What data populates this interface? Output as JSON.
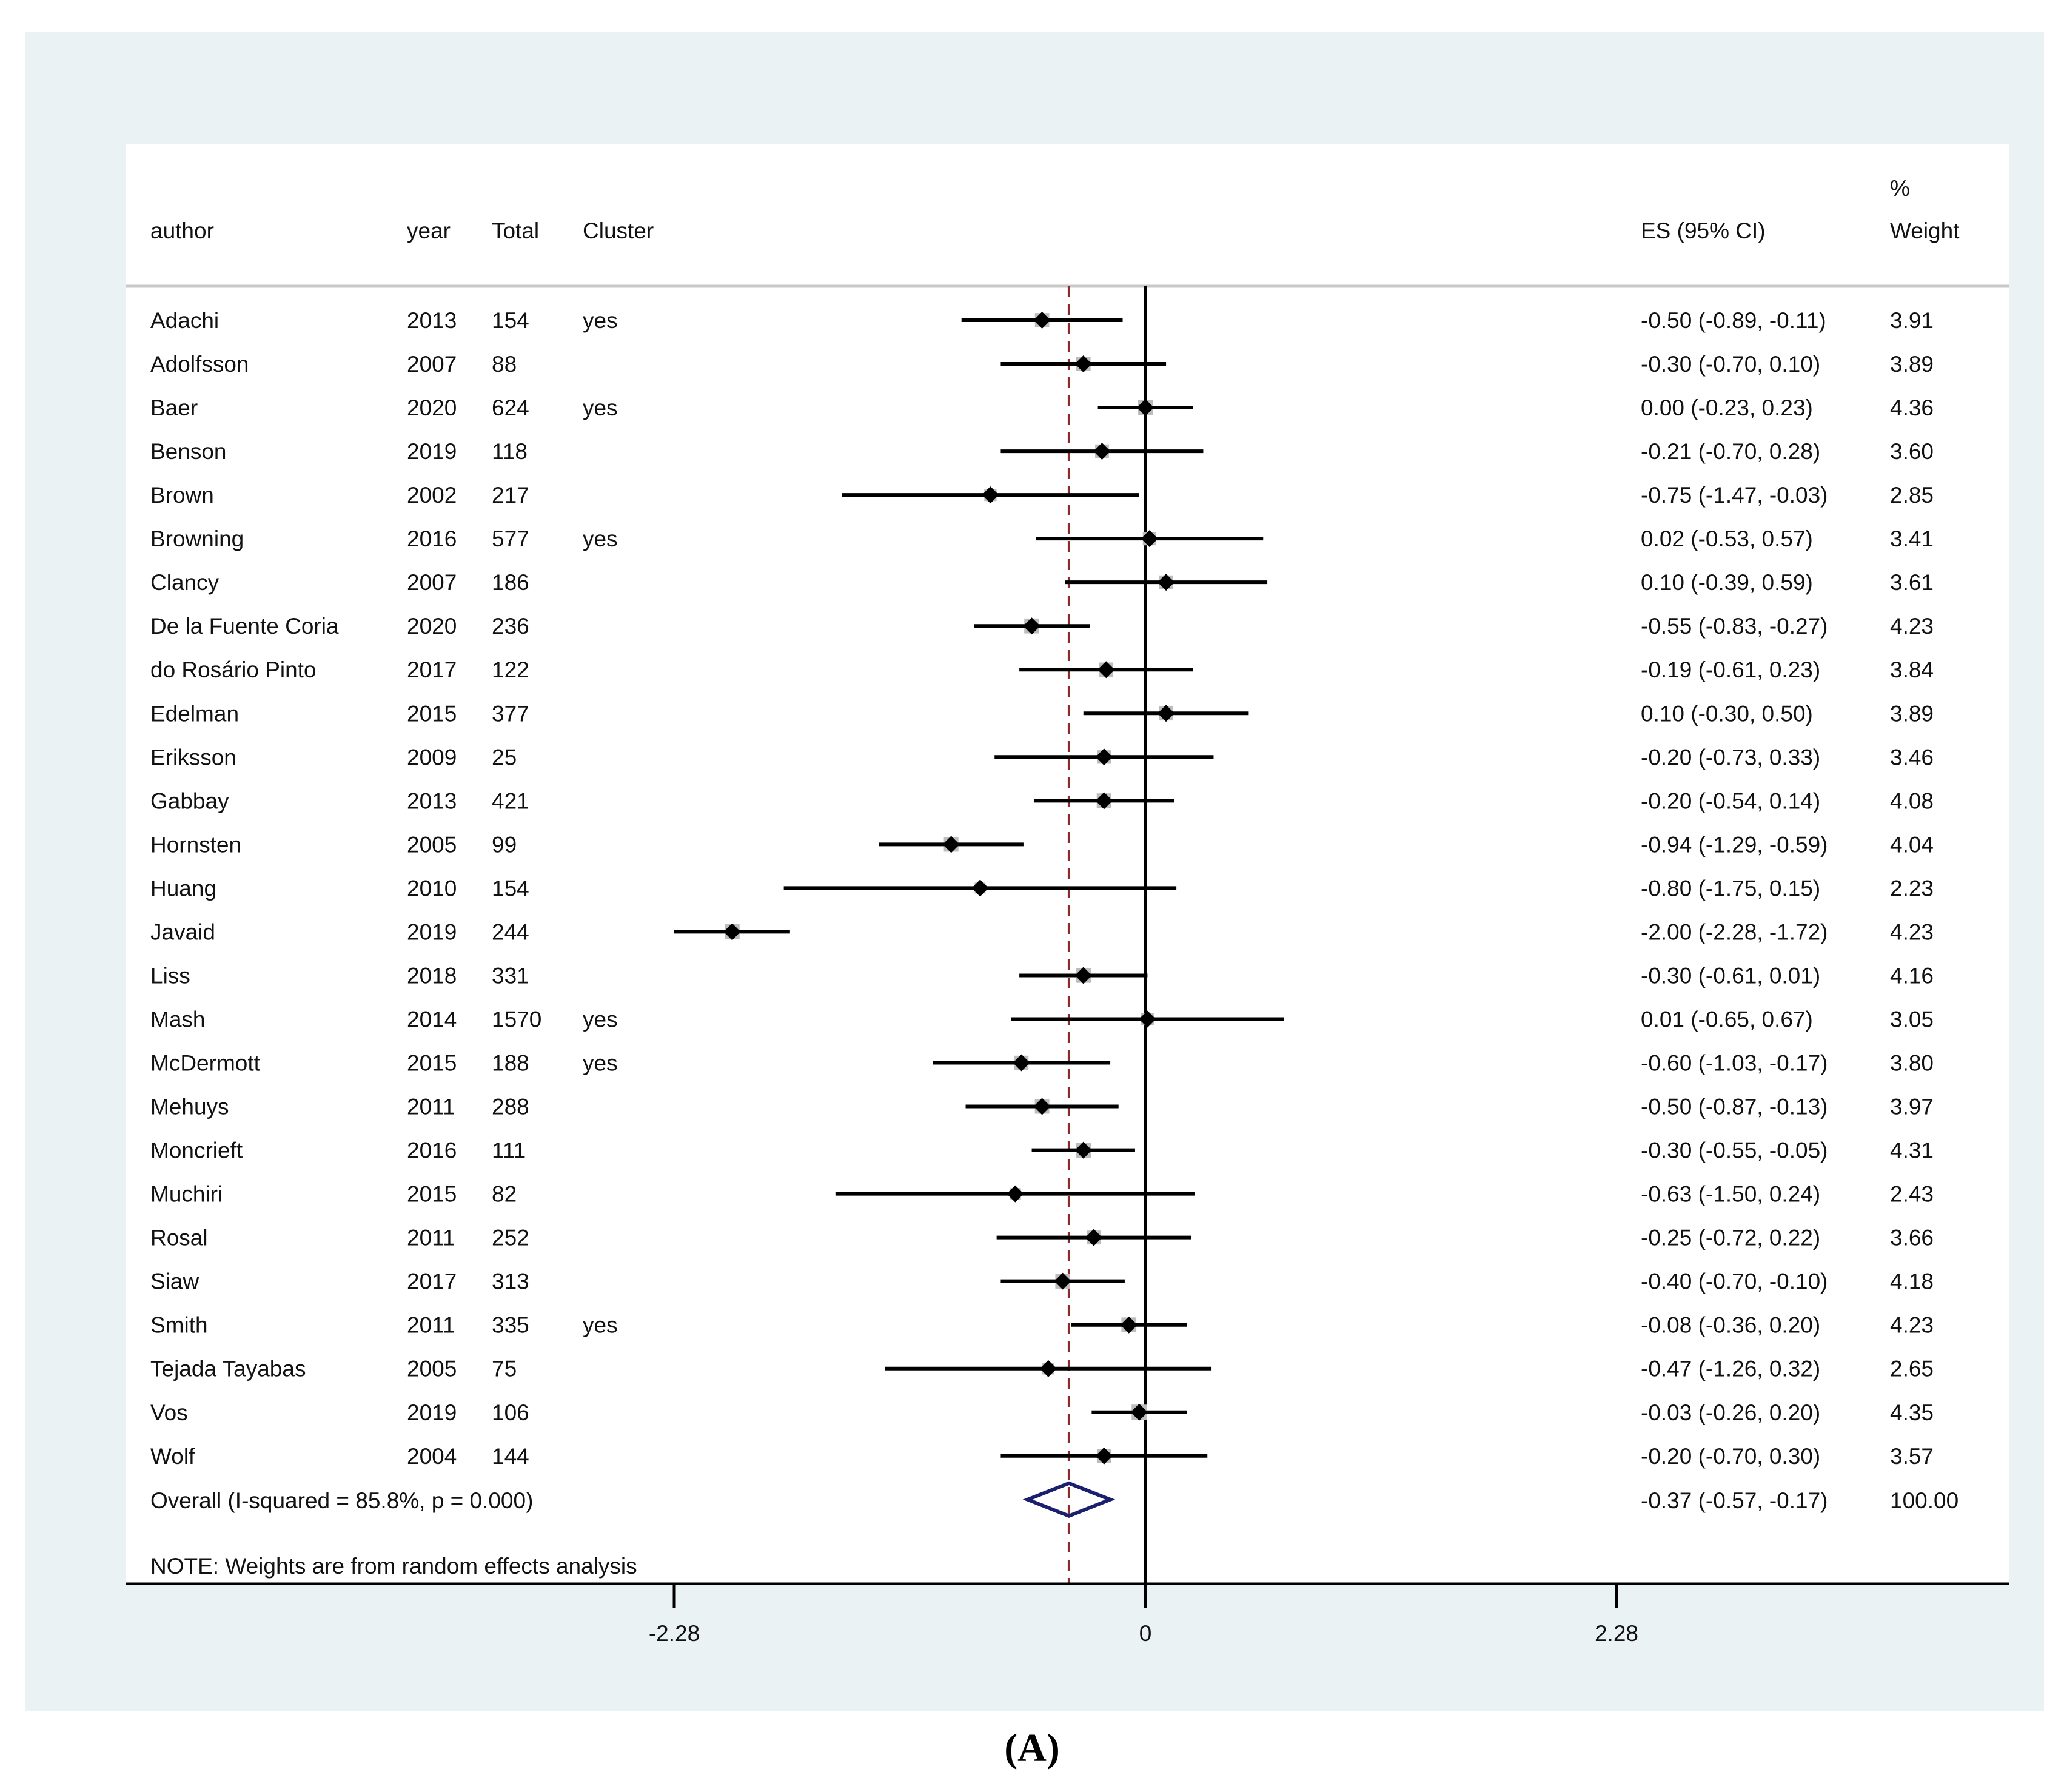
{
  "panel_label": "(A)",
  "chart_data": {
    "type": "forest",
    "headers": {
      "author": "author",
      "year": "year",
      "total": "Total",
      "cluster": "Cluster",
      "es": "ES (95% CI)",
      "weight_top": "%",
      "weight": "Weight"
    },
    "studies": [
      {
        "author": "Adachi",
        "year": "2013",
        "total": "154",
        "cluster": "yes",
        "es": -0.5,
        "lo": -0.89,
        "hi": -0.11,
        "es_text": "-0.50 (-0.89, -0.11)",
        "weight": "3.91"
      },
      {
        "author": "Adolfsson",
        "year": "2007",
        "total": "88",
        "cluster": "",
        "es": -0.3,
        "lo": -0.7,
        "hi": 0.1,
        "es_text": "-0.30 (-0.70, 0.10)",
        "weight": "3.89"
      },
      {
        "author": "Baer",
        "year": "2020",
        "total": "624",
        "cluster": "yes",
        "es": 0.0,
        "lo": -0.23,
        "hi": 0.23,
        "es_text": "0.00 (-0.23, 0.23)",
        "weight": "4.36"
      },
      {
        "author": "Benson",
        "year": "2019",
        "total": "118",
        "cluster": "",
        "es": -0.21,
        "lo": -0.7,
        "hi": 0.28,
        "es_text": "-0.21 (-0.70, 0.28)",
        "weight": "3.60"
      },
      {
        "author": "Brown",
        "year": "2002",
        "total": "217",
        "cluster": "",
        "es": -0.75,
        "lo": -1.47,
        "hi": -0.03,
        "es_text": "-0.75 (-1.47, -0.03)",
        "weight": "2.85"
      },
      {
        "author": "Browning",
        "year": "2016",
        "total": "577",
        "cluster": "yes",
        "es": 0.02,
        "lo": -0.53,
        "hi": 0.57,
        "es_text": "0.02 (-0.53, 0.57)",
        "weight": "3.41"
      },
      {
        "author": "Clancy",
        "year": "2007",
        "total": "186",
        "cluster": "",
        "es": 0.1,
        "lo": -0.39,
        "hi": 0.59,
        "es_text": "0.10 (-0.39, 0.59)",
        "weight": "3.61"
      },
      {
        "author": "De la Fuente Coria",
        "year": "2020",
        "total": "236",
        "cluster": "",
        "es": -0.55,
        "lo": -0.83,
        "hi": -0.27,
        "es_text": "-0.55 (-0.83, -0.27)",
        "weight": "4.23"
      },
      {
        "author": "do Rosário Pinto",
        "year": "2017",
        "total": "122",
        "cluster": "",
        "es": -0.19,
        "lo": -0.61,
        "hi": 0.23,
        "es_text": "-0.19 (-0.61, 0.23)",
        "weight": "3.84"
      },
      {
        "author": "Edelman",
        "year": "2015",
        "total": "377",
        "cluster": "",
        "es": 0.1,
        "lo": -0.3,
        "hi": 0.5,
        "es_text": "0.10 (-0.30, 0.50)",
        "weight": "3.89"
      },
      {
        "author": "Eriksson",
        "year": "2009",
        "total": "25",
        "cluster": "",
        "es": -0.2,
        "lo": -0.73,
        "hi": 0.33,
        "es_text": "-0.20 (-0.73, 0.33)",
        "weight": "3.46"
      },
      {
        "author": "Gabbay",
        "year": "2013",
        "total": "421",
        "cluster": "",
        "es": -0.2,
        "lo": -0.54,
        "hi": 0.14,
        "es_text": "-0.20 (-0.54, 0.14)",
        "weight": "4.08"
      },
      {
        "author": "Hornsten",
        "year": "2005",
        "total": "99",
        "cluster": "",
        "es": -0.94,
        "lo": -1.29,
        "hi": -0.59,
        "es_text": "-0.94 (-1.29, -0.59)",
        "weight": "4.04"
      },
      {
        "author": "Huang",
        "year": "2010",
        "total": "154",
        "cluster": "",
        "es": -0.8,
        "lo": -1.75,
        "hi": 0.15,
        "es_text": "-0.80 (-1.75, 0.15)",
        "weight": "2.23"
      },
      {
        "author": "Javaid",
        "year": "2019",
        "total": "244",
        "cluster": "",
        "es": -2.0,
        "lo": -2.28,
        "hi": -1.72,
        "es_text": "-2.00 (-2.28, -1.72)",
        "weight": "4.23"
      },
      {
        "author": "Liss",
        "year": "2018",
        "total": "331",
        "cluster": "",
        "es": -0.3,
        "lo": -0.61,
        "hi": 0.01,
        "es_text": "-0.30 (-0.61, 0.01)",
        "weight": "4.16"
      },
      {
        "author": "Mash",
        "year": "2014",
        "total": "1570",
        "cluster": "yes",
        "es": 0.01,
        "lo": -0.65,
        "hi": 0.67,
        "es_text": "0.01 (-0.65, 0.67)",
        "weight": "3.05"
      },
      {
        "author": "McDermott",
        "year": "2015",
        "total": "188",
        "cluster": "yes",
        "es": -0.6,
        "lo": -1.03,
        "hi": -0.17,
        "es_text": "-0.60 (-1.03, -0.17)",
        "weight": "3.80"
      },
      {
        "author": "Mehuys",
        "year": "2011",
        "total": "288",
        "cluster": "",
        "es": -0.5,
        "lo": -0.87,
        "hi": -0.13,
        "es_text": "-0.50 (-0.87, -0.13)",
        "weight": "3.97"
      },
      {
        "author": "Moncrieft",
        "year": "2016",
        "total": "111",
        "cluster": "",
        "es": -0.3,
        "lo": -0.55,
        "hi": -0.05,
        "es_text": "-0.30 (-0.55, -0.05)",
        "weight": "4.31"
      },
      {
        "author": "Muchiri",
        "year": "2015",
        "total": "82",
        "cluster": "",
        "es": -0.63,
        "lo": -1.5,
        "hi": 0.24,
        "es_text": "-0.63 (-1.50, 0.24)",
        "weight": "2.43"
      },
      {
        "author": "Rosal",
        "year": "2011",
        "total": "252",
        "cluster": "",
        "es": -0.25,
        "lo": -0.72,
        "hi": 0.22,
        "es_text": "-0.25 (-0.72, 0.22)",
        "weight": "3.66"
      },
      {
        "author": "Siaw",
        "year": "2017",
        "total": "313",
        "cluster": "",
        "es": -0.4,
        "lo": -0.7,
        "hi": -0.1,
        "es_text": "-0.40 (-0.70, -0.10)",
        "weight": "4.18"
      },
      {
        "author": "Smith",
        "year": "2011",
        "total": "335",
        "cluster": "yes",
        "es": -0.08,
        "lo": -0.36,
        "hi": 0.2,
        "es_text": "-0.08 (-0.36, 0.20)",
        "weight": "4.23"
      },
      {
        "author": "Tejada Tayabas",
        "year": "2005",
        "total": "75",
        "cluster": "",
        "es": -0.47,
        "lo": -1.26,
        "hi": 0.32,
        "es_text": "-0.47 (-1.26, 0.32)",
        "weight": "2.65"
      },
      {
        "author": "Vos",
        "year": "2019",
        "total": "106",
        "cluster": "",
        "es": -0.03,
        "lo": -0.26,
        "hi": 0.2,
        "es_text": "-0.03 (-0.26, 0.20)",
        "weight": "4.35"
      },
      {
        "author": "Wolf",
        "year": "2004",
        "total": "144",
        "cluster": "",
        "es": -0.2,
        "lo": -0.7,
        "hi": 0.3,
        "es_text": "-0.20 (-0.70, 0.30)",
        "weight": "3.57"
      }
    ],
    "overall": {
      "label": "Overall  (I-squared = 85.8%, p = 0.000)",
      "es": -0.37,
      "lo": -0.57,
      "hi": -0.17,
      "es_text": "-0.37 (-0.57, -0.17)",
      "weight": "100.00"
    },
    "note": "NOTE: Weights are from random effects analysis",
    "x_ticks": [
      -2.28,
      0,
      2.28
    ],
    "x_tick_labels": [
      "-2.28",
      "0",
      "2.28"
    ],
    "xlim": [
      -2.28,
      2.28
    ],
    "null_line": 0,
    "colors": {
      "ci_line": "#000000",
      "marker": "#000000",
      "weight_box": "#bdbdbd",
      "overall_line": "#8b2b2b",
      "overall_diamond": "#1a1f6e",
      "null_line": "#000000",
      "frame": "#eaf2f3"
    }
  }
}
